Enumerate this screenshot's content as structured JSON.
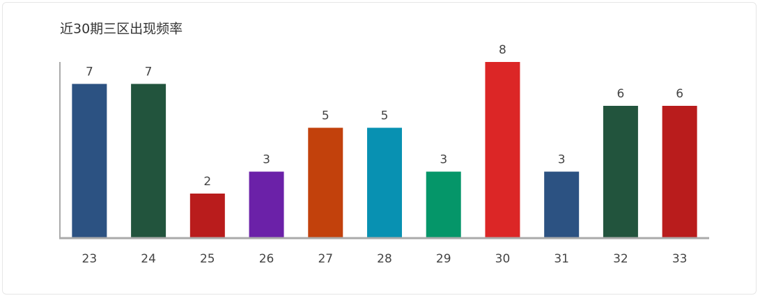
{
  "chart_data": {
    "type": "bar",
    "title": "近30期三区出现频率",
    "categories": [
      "23",
      "24",
      "25",
      "26",
      "27",
      "28",
      "29",
      "30",
      "31",
      "32",
      "33"
    ],
    "values": [
      7,
      7,
      2,
      3,
      5,
      5,
      3,
      8,
      3,
      6,
      6
    ],
    "colors": [
      "#2c5282",
      "#22543d",
      "#b91c1c",
      "#6b21a8",
      "#c2410c",
      "#0891b2",
      "#059669",
      "#dc2626",
      "#2c5282",
      "#22543d",
      "#b91c1c"
    ],
    "ylim": [
      0,
      8
    ]
  }
}
